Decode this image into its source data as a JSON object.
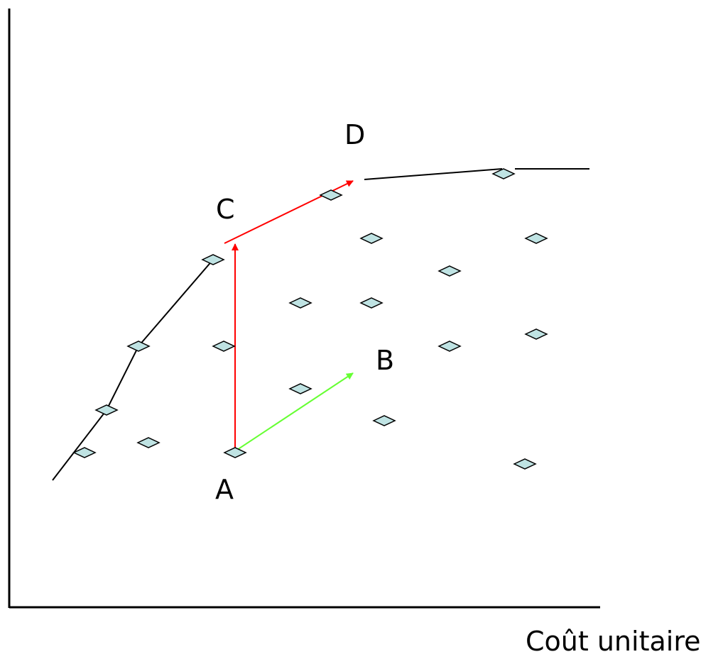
{
  "axis_label": "Coût unitaire",
  "points": {
    "A": "A",
    "B": "B",
    "C": "C",
    "D": "D"
  },
  "colors": {
    "marker_fill": "#bfe3e3",
    "marker_stroke": "#000000",
    "frontier": "#000000",
    "arrow_red": "#ff0000",
    "arrow_green": "#66ff33"
  }
}
